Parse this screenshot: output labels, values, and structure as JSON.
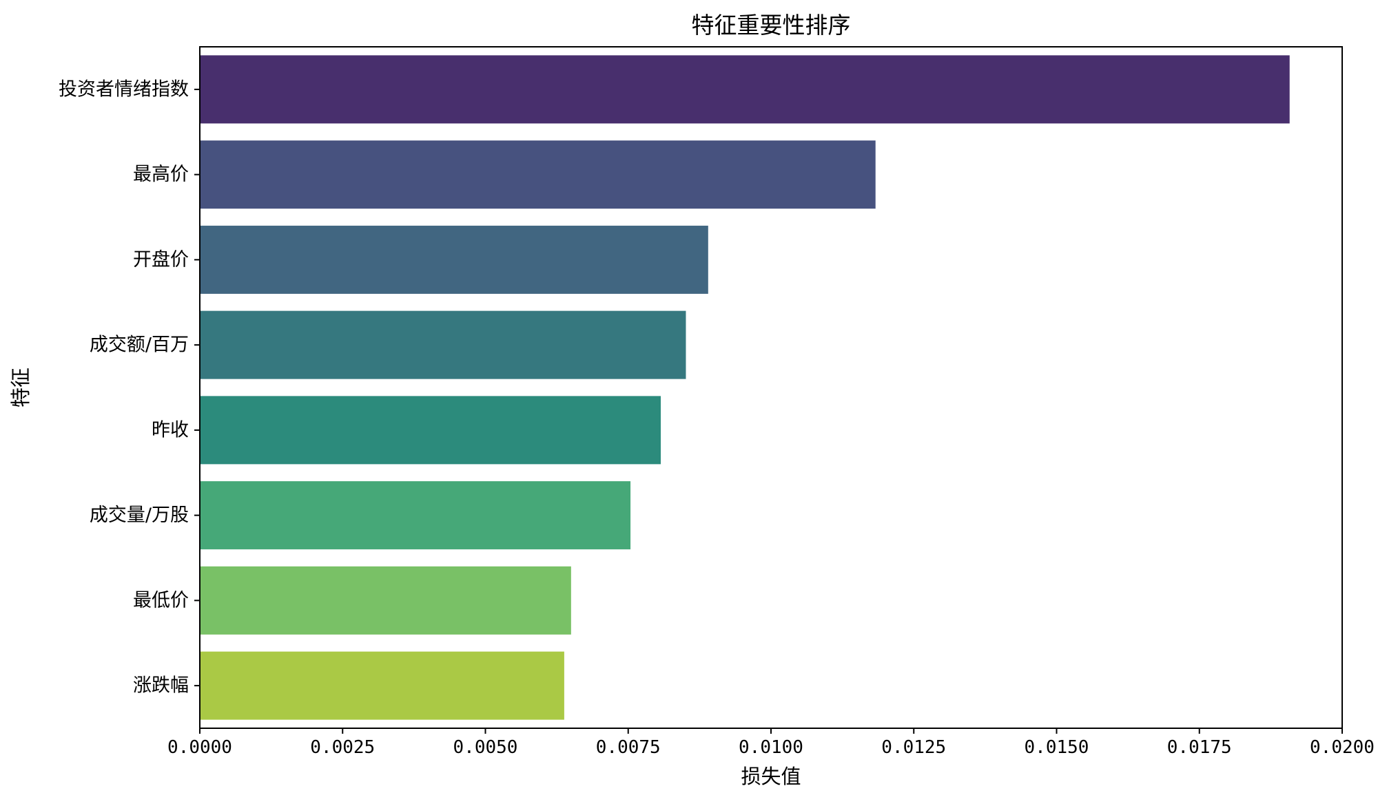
{
  "chart_data": {
    "type": "bar",
    "orientation": "horizontal",
    "title": "特征重要性排序",
    "xlabel": "损失值",
    "ylabel": "特征",
    "xlim": [
      0,
      0.02
    ],
    "xticks": [
      "0.0000",
      "0.0025",
      "0.0050",
      "0.0075",
      "0.0100",
      "0.0125",
      "0.0150",
      "0.0175",
      "0.0200"
    ],
    "xtick_values": [
      0,
      0.0025,
      0.005,
      0.0075,
      0.01,
      0.0125,
      0.015,
      0.0175,
      0.02
    ],
    "categories": [
      "投资者情绪指数",
      "最高价",
      "开盘价",
      "成交额/百万",
      "昨收",
      "成交量/万股",
      "最低价",
      "涨跌幅"
    ],
    "values": [
      0.01908,
      0.01183,
      0.0089,
      0.00851,
      0.00807,
      0.00754,
      0.0065,
      0.00638
    ],
    "colors": [
      "#482f6d",
      "#47527f",
      "#416681",
      "#36787f",
      "#2c8b7c",
      "#46a878",
      "#79c166",
      "#aac945"
    ],
    "grid": false,
    "legend": "none"
  }
}
